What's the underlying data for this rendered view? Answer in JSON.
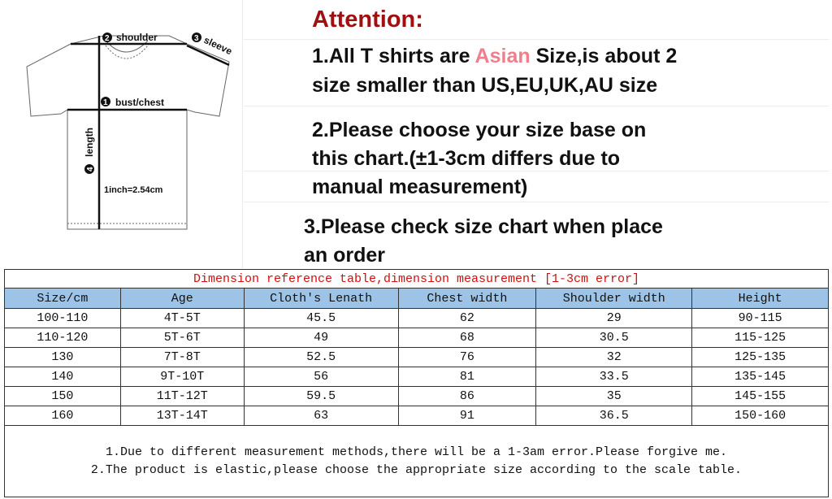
{
  "diagram": {
    "labels": {
      "shoulder": "shoulder",
      "sleeve": "sleeve",
      "chest": "bust/chest",
      "length": "length",
      "conversion": "1inch=2.54cm"
    },
    "numbers": [
      "1",
      "2",
      "3",
      "4"
    ]
  },
  "attention": {
    "title": "Attention:",
    "item1_pre": "1.All T shirts are ",
    "item1_highlight": "Asian",
    "item1_post": " Size,is about 2",
    "item1_line2": "size smaller than US,EU,UK,AU size",
    "item2_line1": "2.Please choose your size base on",
    "item2_line2": "this chart.(±1-3cm differs due to",
    "item2_line3": "manual measurement)",
    "item3_line1": "3.Please check size chart when place",
    "item3_line2": "an order",
    "colors": {
      "title": "#a01010",
      "highlight": "#ee7f8c"
    }
  },
  "table": {
    "title": "Dimension reference table,dimension measurement [1-3cm error]",
    "headers": [
      "Size/cm",
      "Age",
      "Cloth's Lenath",
      "Chest width",
      "Shoulder width",
      "Height"
    ],
    "rows": [
      [
        "100-110",
        "4T-5T",
        "45.5",
        "62",
        "29",
        "90-115"
      ],
      [
        "110-120",
        "5T-6T",
        "49",
        "68",
        "30.5",
        "115-125"
      ],
      [
        "130",
        "7T-8T",
        "52.5",
        "76",
        "32",
        "125-135"
      ],
      [
        "140",
        "9T-10T",
        "56",
        "81",
        "33.5",
        "135-145"
      ],
      [
        "150",
        "11T-12T",
        "59.5",
        "86",
        "35",
        "145-155"
      ],
      [
        "160",
        "13T-14T",
        "63",
        "91",
        "36.5",
        "150-160"
      ]
    ],
    "notes": [
      "1.Due to different measurement methods,there will be a 1-3am error.Please forgive me.",
      "2.The product is elastic,please choose the appropriate size according to the scale table."
    ],
    "header_color": "#9dc3e6"
  }
}
